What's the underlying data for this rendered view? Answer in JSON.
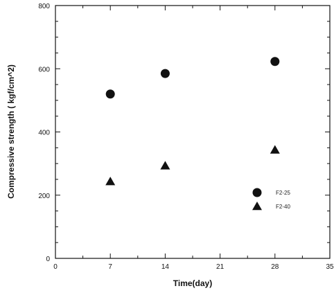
{
  "chart_data": {
    "type": "scatter",
    "xlabel": "Time(day)",
    "ylabel": "Compressive strength ( kgf/cm^2)",
    "xlim": [
      0,
      35
    ],
    "ylim": [
      0,
      800
    ],
    "xticks": [
      0,
      7,
      14,
      21,
      28,
      35
    ],
    "yticks": [
      0,
      200,
      400,
      600,
      800
    ],
    "grid": false,
    "legend_position": "right",
    "series": [
      {
        "name": "F2-25",
        "marker": "circle",
        "color": "#111111",
        "points": [
          {
            "x": 7,
            "y": 520
          },
          {
            "x": 14,
            "y": 585
          },
          {
            "x": 28,
            "y": 623
          }
        ]
      },
      {
        "name": "F2-40",
        "marker": "triangle",
        "color": "#111111",
        "points": [
          {
            "x": 7,
            "y": 243
          },
          {
            "x": 14,
            "y": 293
          },
          {
            "x": 28,
            "y": 343
          }
        ]
      }
    ]
  }
}
